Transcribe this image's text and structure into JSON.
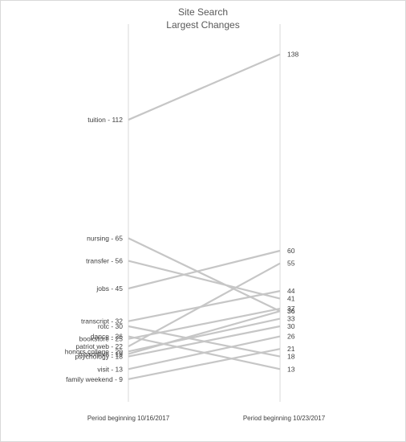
{
  "chart_data": {
    "type": "line",
    "title": "Site Search",
    "subtitle": "Largest Changes",
    "categories": [
      "Period beginning 10/16/2017",
      "Period beginning 10/23/2017"
    ],
    "series": [
      {
        "name": "tuition",
        "values": [
          112,
          138
        ],
        "left_label": "tuition - 112",
        "right_label": "138"
      },
      {
        "name": "nursing",
        "values": [
          65,
          36
        ],
        "left_label": "nursing - 65",
        "right_label": "36"
      },
      {
        "name": "transfer",
        "values": [
          56,
          41
        ],
        "left_label": "transfer - 56",
        "right_label": "41"
      },
      {
        "name": "jobs",
        "values": [
          45,
          60
        ],
        "left_label": "jobs - 45",
        "right_label": "60"
      },
      {
        "name": "transcript",
        "values": [
          32,
          44
        ],
        "left_label": "transcript - 32",
        "right_label": "44"
      },
      {
        "name": "rotc",
        "values": [
          30,
          18
        ],
        "left_label": "rotc - 30",
        "right_label": "18"
      },
      {
        "name": "dance",
        "values": [
          26,
          13
        ],
        "left_label": "dance - 26",
        "right_label": "13"
      },
      {
        "name": "bookstore",
        "values": [
          25,
          37
        ],
        "left_label": "bookstore - 25",
        "right_label": "37"
      },
      {
        "name": "patriot web",
        "values": [
          22,
          55
        ],
        "left_label": "patriot web - 22",
        "right_label": "55"
      },
      {
        "name": "honors college",
        "values": [
          20,
          33
        ],
        "left_label": "honors college - 20",
        "right_label": "33"
      },
      {
        "name": "masonlive",
        "values": [
          19,
          36
        ],
        "left_label": "masonlive - 19",
        "right_label": "36"
      },
      {
        "name": "psychology",
        "values": [
          18,
          30
        ],
        "left_label": "psychology - 18",
        "right_label": "30"
      },
      {
        "name": "visit",
        "values": [
          13,
          26
        ],
        "left_label": "visit - 13",
        "right_label": "26"
      },
      {
        "name": "family weekend",
        "values": [
          9,
          21
        ],
        "left_label": "family weekend - 9",
        "right_label": "21"
      }
    ],
    "ylim": [
      0,
      150
    ],
    "colors": {
      "line": "#c6c6c6",
      "axis": "#d9d9d9",
      "text": "#404040",
      "title": "#595959"
    },
    "grid": false,
    "legend": "none"
  }
}
